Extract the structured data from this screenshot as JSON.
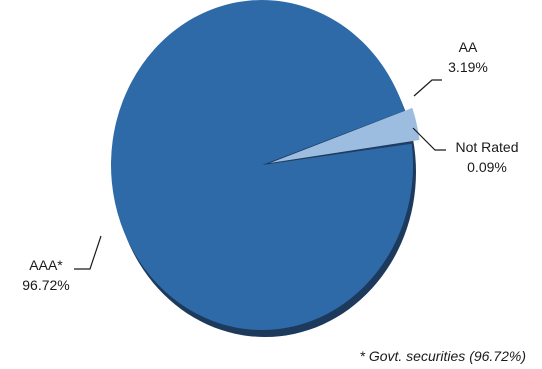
{
  "chart_data": {
    "type": "pie",
    "categories": [
      "AA",
      "Not Rated",
      "AAA*"
    ],
    "values": [
      3.19,
      0.09,
      96.72
    ],
    "value_labels": [
      "3.19%",
      "0.09%",
      "96.72%"
    ],
    "colors": [
      "#9dbde0",
      "#1f3f66",
      "#2e6aa8"
    ],
    "shadow_color": "#1d3a5c",
    "footnote": "* Govt. securities  (96.72%)",
    "legend": "none"
  }
}
